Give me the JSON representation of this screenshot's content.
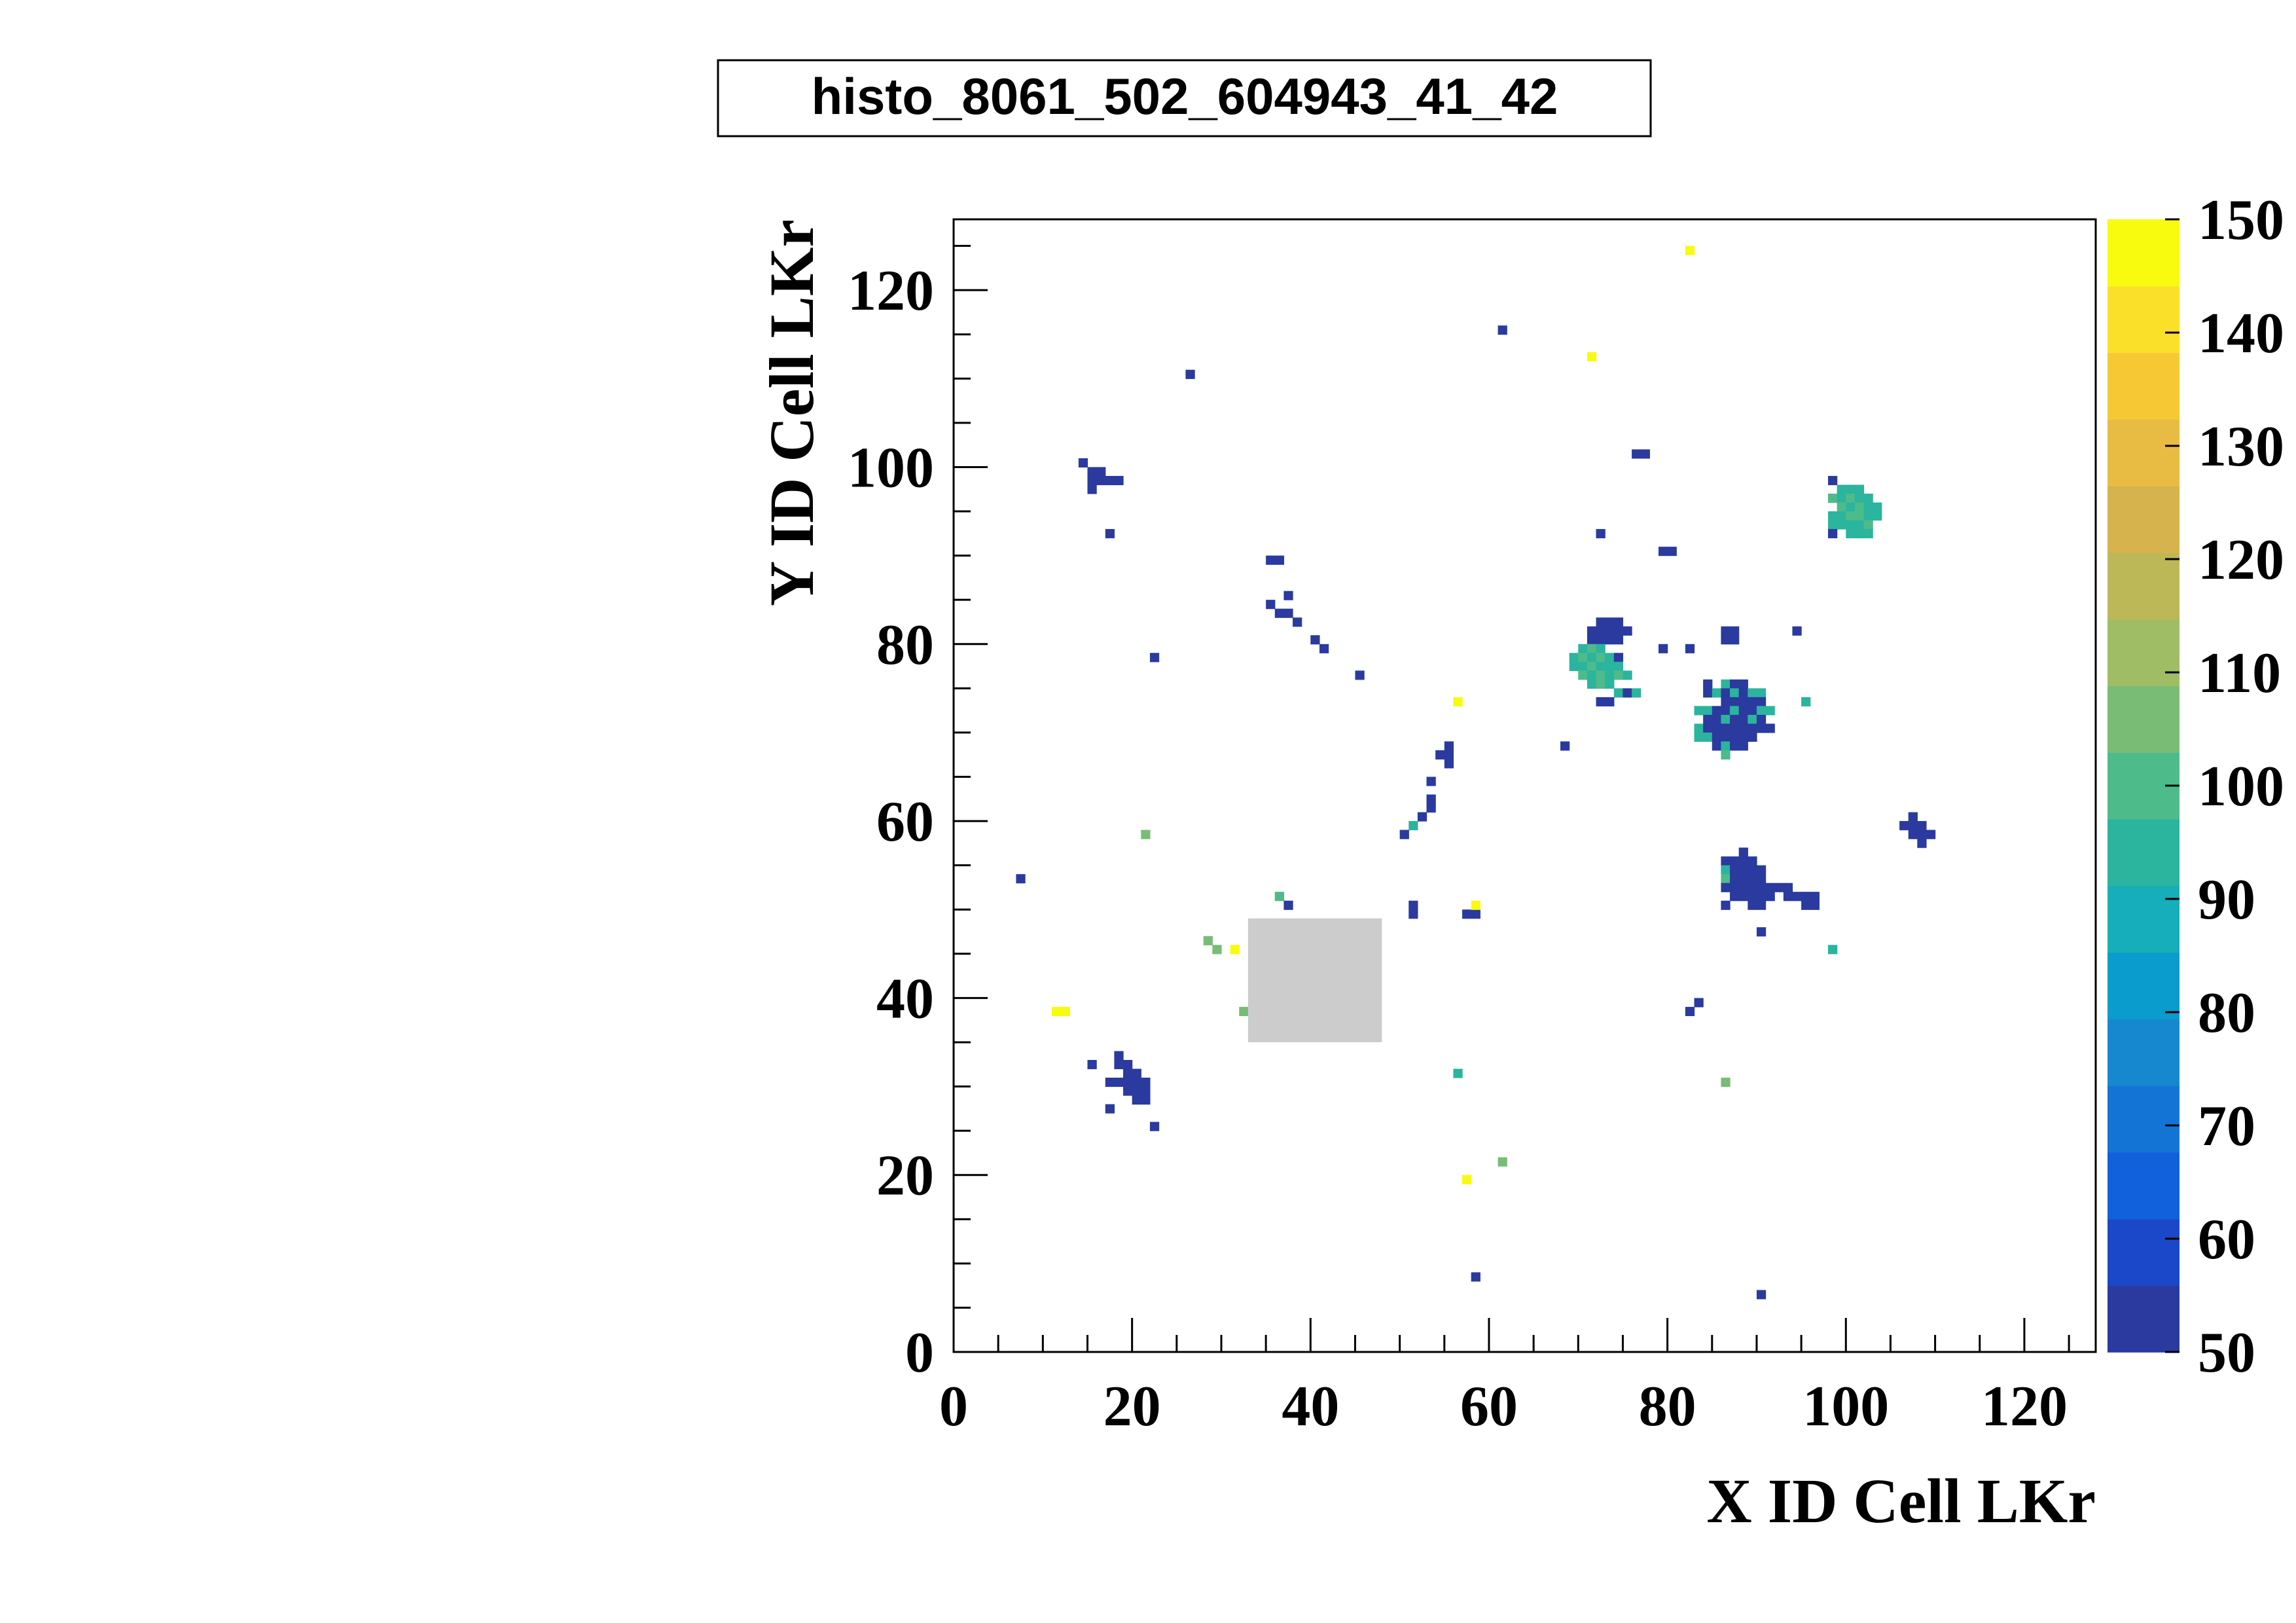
{
  "chart_data": {
    "type": "heatmap",
    "title": "histo_8061_502_604943_41_42",
    "xlabel": "X ID Cell LKr",
    "ylabel": "Y ID Cell LKr",
    "xlim": [
      0,
      128
    ],
    "ylim": [
      0,
      128
    ],
    "x_ticks": [
      0,
      20,
      40,
      60,
      80,
      100,
      120
    ],
    "y_ticks": [
      0,
      20,
      40,
      60,
      80,
      100,
      120
    ],
    "z_range": [
      50,
      150
    ],
    "z_ticks": [
      50,
      60,
      70,
      80,
      90,
      100,
      110,
      120,
      130,
      140,
      150
    ],
    "colorbar_labels": [
      "50",
      "60",
      "70",
      "80",
      "90",
      "100",
      "110",
      "120",
      "130",
      "140",
      "150"
    ],
    "palette": [
      "#2a3a9e",
      "#1a48c8",
      "#1160dc",
      "#1474d6",
      "#1688cf",
      "#0a9ccc",
      "#16aeba",
      "#2bb49e",
      "#4ebb8a",
      "#78bc76",
      "#9ebd64",
      "#bcb858",
      "#d6b34c",
      "#e8bb42",
      "#f6c834",
      "#fbe02a",
      "#f9fb0e"
    ],
    "missing_region": {
      "x": [
        33,
        48
      ],
      "y": [
        35,
        49
      ],
      "color": "#cccccc"
    },
    "cells": [
      [
        14,
        100,
        50
      ],
      [
        15,
        99,
        50
      ],
      [
        16,
        99,
        50
      ],
      [
        15,
        98,
        50
      ],
      [
        16,
        98,
        50
      ],
      [
        17,
        98,
        50
      ],
      [
        18,
        98,
        50
      ],
      [
        15,
        97,
        50
      ],
      [
        17,
        92,
        50
      ],
      [
        26,
        110,
        50
      ],
      [
        61,
        115,
        50
      ],
      [
        76,
        101,
        50
      ],
      [
        77,
        101,
        50
      ],
      [
        72,
        92,
        50
      ],
      [
        79,
        90,
        50
      ],
      [
        80,
        90,
        50
      ],
      [
        35,
        89,
        50
      ],
      [
        36,
        89,
        50
      ],
      [
        37,
        85,
        50
      ],
      [
        35,
        84,
        50
      ],
      [
        36,
        83,
        50
      ],
      [
        37,
        83,
        50
      ],
      [
        38,
        82,
        50
      ],
      [
        40,
        80,
        50
      ],
      [
        41,
        79,
        50
      ],
      [
        22,
        78,
        50
      ],
      [
        45,
        76,
        50
      ],
      [
        82,
        124,
        148
      ],
      [
        71,
        112,
        148
      ],
      [
        98,
        98,
        50
      ],
      [
        99,
        97,
        95
      ],
      [
        100,
        97,
        97
      ],
      [
        101,
        97,
        95
      ],
      [
        98,
        96,
        100
      ],
      [
        99,
        96,
        97
      ],
      [
        100,
        96,
        100
      ],
      [
        101,
        96,
        97
      ],
      [
        102,
        96,
        95
      ],
      [
        99,
        95,
        100
      ],
      [
        100,
        95,
        97
      ],
      [
        101,
        95,
        100
      ],
      [
        102,
        95,
        97
      ],
      [
        103,
        95,
        95
      ],
      [
        98,
        94,
        95
      ],
      [
        99,
        94,
        97
      ],
      [
        100,
        94,
        100
      ],
      [
        101,
        94,
        100
      ],
      [
        102,
        94,
        97
      ],
      [
        103,
        94,
        95
      ],
      [
        98,
        93,
        97
      ],
      [
        99,
        93,
        95
      ],
      [
        100,
        93,
        97
      ],
      [
        101,
        93,
        95
      ],
      [
        102,
        93,
        100
      ],
      [
        98,
        92,
        50
      ],
      [
        100,
        92,
        95
      ],
      [
        101,
        92,
        97
      ],
      [
        102,
        92,
        95
      ],
      [
        72,
        82,
        50
      ],
      [
        73,
        82,
        50
      ],
      [
        74,
        82,
        50
      ],
      [
        71,
        81,
        50
      ],
      [
        72,
        81,
        50
      ],
      [
        73,
        81,
        50
      ],
      [
        74,
        81,
        50
      ],
      [
        71,
        80,
        50
      ],
      [
        72,
        80,
        50
      ],
      [
        73,
        80,
        50
      ],
      [
        74,
        80,
        50
      ],
      [
        75,
        81,
        50
      ],
      [
        79,
        79,
        50
      ],
      [
        82,
        79,
        50
      ],
      [
        86,
        81,
        50
      ],
      [
        87,
        81,
        50
      ],
      [
        86,
        80,
        50
      ],
      [
        87,
        80,
        50
      ],
      [
        94,
        81,
        50
      ],
      [
        70,
        79,
        97
      ],
      [
        71,
        79,
        100
      ],
      [
        72,
        79,
        97
      ],
      [
        69,
        78,
        95
      ],
      [
        70,
        78,
        100
      ],
      [
        71,
        78,
        97
      ],
      [
        72,
        78,
        100
      ],
      [
        73,
        78,
        97
      ],
      [
        74,
        78,
        50
      ],
      [
        69,
        77,
        95
      ],
      [
        70,
        77,
        97
      ],
      [
        71,
        77,
        100
      ],
      [
        72,
        77,
        97
      ],
      [
        73,
        77,
        95
      ],
      [
        74,
        77,
        97
      ],
      [
        70,
        76,
        100
      ],
      [
        71,
        76,
        97
      ],
      [
        72,
        76,
        100
      ],
      [
        73,
        76,
        97
      ],
      [
        74,
        76,
        100
      ],
      [
        75,
        76,
        95
      ],
      [
        71,
        75,
        97
      ],
      [
        72,
        75,
        100
      ],
      [
        73,
        75,
        97
      ],
      [
        74,
        74,
        95
      ],
      [
        75,
        74,
        50
      ],
      [
        76,
        74,
        97
      ],
      [
        72,
        73,
        50
      ],
      [
        73,
        73,
        50
      ],
      [
        68,
        68,
        50
      ],
      [
        56,
        73,
        148
      ],
      [
        95,
        73,
        97
      ],
      [
        84,
        75,
        50
      ],
      [
        86,
        75,
        95
      ],
      [
        87,
        75,
        50
      ],
      [
        88,
        75,
        50
      ],
      [
        84,
        74,
        50
      ],
      [
        85,
        74,
        95
      ],
      [
        86,
        74,
        50
      ],
      [
        87,
        74,
        95
      ],
      [
        88,
        74,
        50
      ],
      [
        89,
        74,
        95
      ],
      [
        90,
        74,
        97
      ],
      [
        86,
        73,
        50
      ],
      [
        87,
        73,
        50
      ],
      [
        88,
        73,
        50
      ],
      [
        89,
        73,
        50
      ],
      [
        90,
        73,
        50
      ],
      [
        83,
        72,
        97
      ],
      [
        84,
        72,
        95
      ],
      [
        85,
        72,
        50
      ],
      [
        86,
        72,
        50
      ],
      [
        87,
        72,
        95
      ],
      [
        88,
        72,
        50
      ],
      [
        89,
        72,
        50
      ],
      [
        90,
        72,
        95
      ],
      [
        91,
        72,
        95
      ],
      [
        84,
        71,
        50
      ],
      [
        85,
        71,
        50
      ],
      [
        86,
        71,
        95
      ],
      [
        87,
        71,
        50
      ],
      [
        88,
        71,
        50
      ],
      [
        89,
        71,
        95
      ],
      [
        90,
        71,
        50
      ],
      [
        83,
        70,
        95
      ],
      [
        84,
        70,
        50
      ],
      [
        85,
        70,
        50
      ],
      [
        86,
        70,
        50
      ],
      [
        87,
        70,
        50
      ],
      [
        88,
        70,
        50
      ],
      [
        89,
        70,
        50
      ],
      [
        90,
        70,
        50
      ],
      [
        91,
        70,
        50
      ],
      [
        83,
        69,
        97
      ],
      [
        84,
        69,
        95
      ],
      [
        85,
        69,
        50
      ],
      [
        86,
        69,
        50
      ],
      [
        87,
        69,
        50
      ],
      [
        88,
        69,
        50
      ],
      [
        89,
        69,
        50
      ],
      [
        85,
        68,
        50
      ],
      [
        86,
        68,
        97
      ],
      [
        87,
        68,
        50
      ],
      [
        88,
        68,
        50
      ],
      [
        86,
        67,
        100
      ],
      [
        55,
        68,
        50
      ],
      [
        54,
        67,
        50
      ],
      [
        55,
        67,
        50
      ],
      [
        55,
        66,
        50
      ],
      [
        53,
        64,
        50
      ],
      [
        53,
        62,
        50
      ],
      [
        53,
        61,
        50
      ],
      [
        52,
        60,
        50
      ],
      [
        51,
        59,
        95
      ],
      [
        50,
        58,
        50
      ],
      [
        107,
        60,
        50
      ],
      [
        106,
        59,
        50
      ],
      [
        107,
        59,
        50
      ],
      [
        108,
        59,
        50
      ],
      [
        107,
        58,
        50
      ],
      [
        108,
        58,
        50
      ],
      [
        109,
        58,
        50
      ],
      [
        108,
        57,
        50
      ],
      [
        21,
        58,
        103
      ],
      [
        7,
        53,
        50
      ],
      [
        88,
        56,
        50
      ],
      [
        86,
        55,
        50
      ],
      [
        87,
        55,
        50
      ],
      [
        88,
        55,
        50
      ],
      [
        89,
        55,
        50
      ],
      [
        86,
        54,
        95
      ],
      [
        87,
        54,
        50
      ],
      [
        88,
        54,
        50
      ],
      [
        89,
        54,
        50
      ],
      [
        90,
        54,
        50
      ],
      [
        86,
        53,
        100
      ],
      [
        87,
        53,
        50
      ],
      [
        88,
        53,
        50
      ],
      [
        89,
        53,
        50
      ],
      [
        90,
        53,
        50
      ],
      [
        86,
        52,
        50
      ],
      [
        87,
        52,
        50
      ],
      [
        88,
        52,
        50
      ],
      [
        89,
        52,
        50
      ],
      [
        90,
        52,
        50
      ],
      [
        91,
        52,
        50
      ],
      [
        92,
        52,
        50
      ],
      [
        93,
        52,
        50
      ],
      [
        87,
        51,
        50
      ],
      [
        88,
        51,
        50
      ],
      [
        89,
        51,
        50
      ],
      [
        90,
        51,
        50
      ],
      [
        91,
        51,
        50
      ],
      [
        93,
        51,
        50
      ],
      [
        94,
        51,
        50
      ],
      [
        95,
        51,
        50
      ],
      [
        96,
        51,
        50
      ],
      [
        86,
        50,
        50
      ],
      [
        89,
        50,
        50
      ],
      [
        90,
        50,
        50
      ],
      [
        95,
        50,
        50
      ],
      [
        96,
        50,
        50
      ],
      [
        90,
        47,
        50
      ],
      [
        98,
        45,
        95
      ],
      [
        36,
        51,
        100
      ],
      [
        37,
        50,
        50
      ],
      [
        51,
        50,
        50
      ],
      [
        51,
        49,
        50
      ],
      [
        57,
        49,
        50
      ],
      [
        58,
        49,
        50
      ],
      [
        58,
        50,
        148
      ],
      [
        28,
        46,
        103
      ],
      [
        29,
        45,
        105
      ],
      [
        31,
        45,
        148
      ],
      [
        32,
        38,
        105
      ],
      [
        11,
        38,
        148
      ],
      [
        12,
        38,
        148
      ],
      [
        83,
        39,
        50
      ],
      [
        82,
        38,
        50
      ],
      [
        18,
        33,
        50
      ],
      [
        15,
        32,
        50
      ],
      [
        18,
        32,
        50
      ],
      [
        19,
        32,
        50
      ],
      [
        19,
        31,
        50
      ],
      [
        20,
        31,
        50
      ],
      [
        17,
        30,
        50
      ],
      [
        18,
        30,
        50
      ],
      [
        19,
        30,
        50
      ],
      [
        20,
        30,
        50
      ],
      [
        21,
        30,
        50
      ],
      [
        19,
        29,
        50
      ],
      [
        20,
        29,
        50
      ],
      [
        21,
        29,
        50
      ],
      [
        20,
        28,
        50
      ],
      [
        21,
        28,
        50
      ],
      [
        17,
        27,
        50
      ],
      [
        22,
        25,
        50
      ],
      [
        56,
        31,
        95
      ],
      [
        86,
        30,
        103
      ],
      [
        61,
        21,
        103
      ],
      [
        57,
        19,
        148
      ],
      [
        58,
        8,
        50
      ],
      [
        90,
        6,
        50
      ]
    ]
  }
}
